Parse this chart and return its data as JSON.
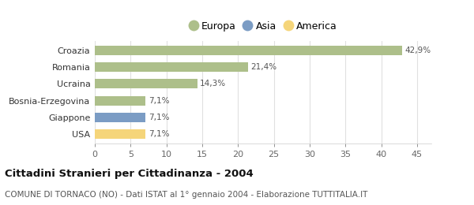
{
  "categories": [
    "USA",
    "Giappone",
    "Bosnia-Erzegovina",
    "Ucraina",
    "Romania",
    "Croazia"
  ],
  "values": [
    7.1,
    7.1,
    7.1,
    14.3,
    21.4,
    42.9
  ],
  "labels": [
    "7,1%",
    "7,1%",
    "7,1%",
    "14,3%",
    "21,4%",
    "42,9%"
  ],
  "colors": [
    "#f5d57a",
    "#7b9cc4",
    "#adbf8a",
    "#adbf8a",
    "#adbf8a",
    "#adbf8a"
  ],
  "legend_items": [
    {
      "label": "Europa",
      "color": "#adbf8a"
    },
    {
      "label": "Asia",
      "color": "#7b9cc4"
    },
    {
      "label": "America",
      "color": "#f5d57a"
    }
  ],
  "xlim": [
    0,
    47
  ],
  "xticks": [
    0,
    5,
    10,
    15,
    20,
    25,
    30,
    35,
    40,
    45
  ],
  "title": "Cittadini Stranieri per Cittadinanza - 2004",
  "subtitle": "COMUNE DI TORNACO (NO) - Dati ISTAT al 1° gennaio 2004 - Elaborazione TUTTITALIA.IT",
  "title_fontsize": 9.5,
  "subtitle_fontsize": 7.5,
  "background_color": "#ffffff",
  "grid_color": "#e0e0e0",
  "bar_height": 0.55,
  "label_fontsize": 7.5,
  "ytick_fontsize": 8,
  "xtick_fontsize": 8
}
